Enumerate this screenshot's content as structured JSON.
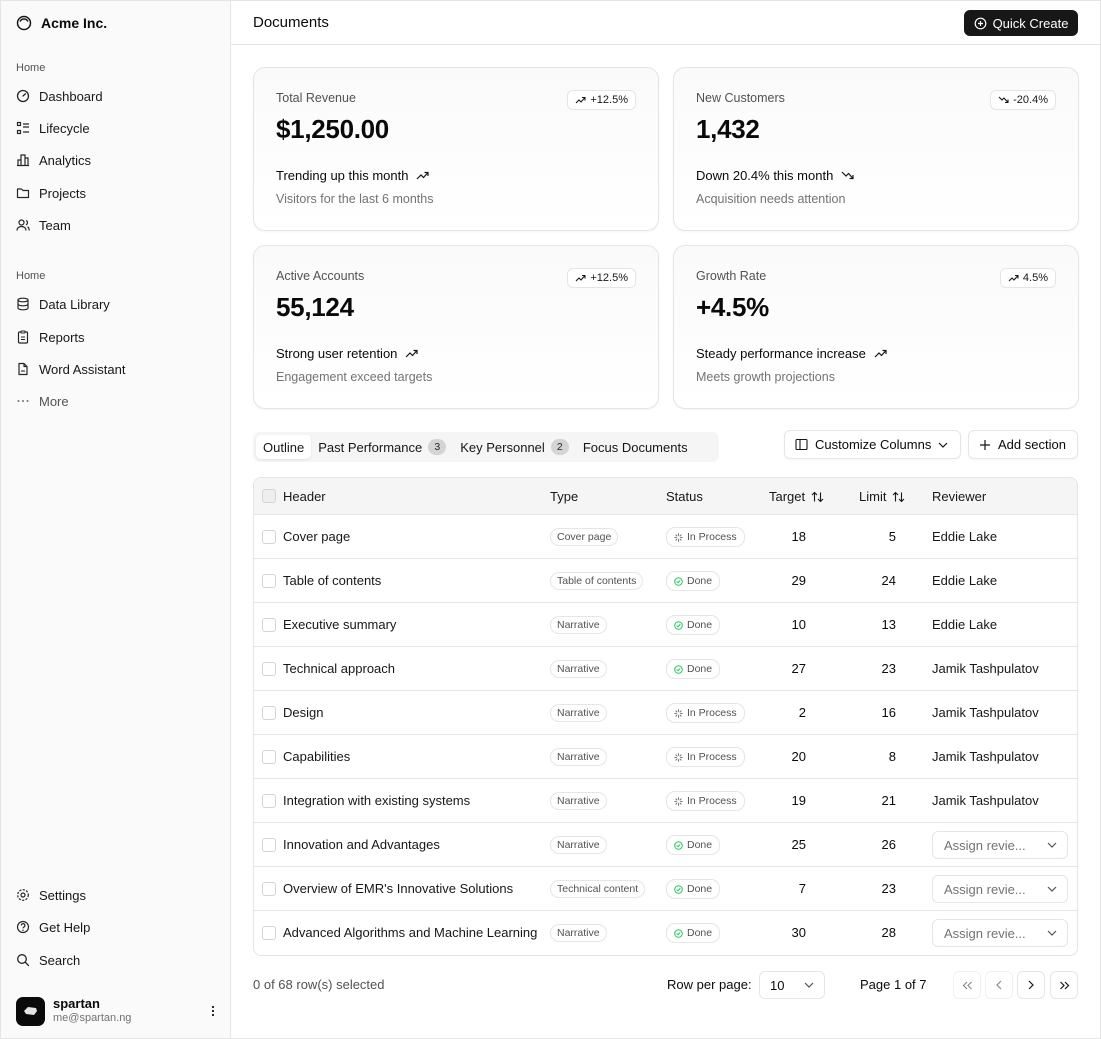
{
  "sidebar": {
    "brand": "Acme Inc.",
    "group1_label": "Home",
    "group1": [
      {
        "label": "Dashboard",
        "icon": "gauge-icon"
      },
      {
        "label": "Lifecycle",
        "icon": "list-icon"
      },
      {
        "label": "Analytics",
        "icon": "chart-icon"
      },
      {
        "label": "Projects",
        "icon": "folder-icon"
      },
      {
        "label": "Team",
        "icon": "users-icon"
      }
    ],
    "group2_label": "Home",
    "group2": [
      {
        "label": "Data Library",
        "icon": "database-icon"
      },
      {
        "label": "Reports",
        "icon": "clipboard-icon"
      },
      {
        "label": "Word Assistant",
        "icon": "file-icon"
      },
      {
        "label": "More",
        "icon": "ellipsis-icon"
      }
    ],
    "bottom": [
      {
        "label": "Settings",
        "icon": "gear-icon"
      },
      {
        "label": "Get Help",
        "icon": "help-icon"
      },
      {
        "label": "Search",
        "icon": "search-icon"
      }
    ],
    "user": {
      "name": "spartan",
      "email": "me@spartan.ng"
    }
  },
  "header": {
    "title": "Documents",
    "quick_create": "Quick Create"
  },
  "cards": [
    {
      "label": "Total Revenue",
      "value": "$1,250.00",
      "badge": "+12.5%",
      "trend": "up",
      "foot1": "Trending up this month",
      "foot2": "Visitors for the last 6 months"
    },
    {
      "label": "New Customers",
      "value": "1,432",
      "badge": "-20.4%",
      "trend": "down",
      "foot1": "Down 20.4% this month",
      "foot2": "Acquisition needs attention"
    },
    {
      "label": "Active Accounts",
      "value": "55,124",
      "badge": "+12.5%",
      "trend": "up",
      "foot1": "Strong user retention",
      "foot2": "Engagement exceed targets"
    },
    {
      "label": "Growth Rate",
      "value": "+4.5%",
      "badge": "4.5%",
      "trend": "up",
      "foot1": "Steady performance increase",
      "foot2": "Meets growth projections"
    }
  ],
  "tabs": [
    {
      "label": "Outline",
      "count": null,
      "active": true
    },
    {
      "label": "Past Performance",
      "count": "3"
    },
    {
      "label": "Key Personnel",
      "count": "2"
    },
    {
      "label": "Focus Documents",
      "count": null
    }
  ],
  "actions": {
    "customize": "Customize Columns",
    "add_section": "Add section"
  },
  "table": {
    "columns": {
      "header": "Header",
      "type": "Type",
      "status": "Status",
      "target": "Target",
      "limit": "Limit",
      "reviewer": "Reviewer"
    },
    "rows": [
      {
        "header": "Cover page",
        "type": "Cover page",
        "status": "In Process",
        "target": "18",
        "limit": "5",
        "reviewer": "Eddie Lake"
      },
      {
        "header": "Table of contents",
        "type": "Table of contents",
        "status": "Done",
        "target": "29",
        "limit": "24",
        "reviewer": "Eddie Lake"
      },
      {
        "header": "Executive summary",
        "type": "Narrative",
        "status": "Done",
        "target": "10",
        "limit": "13",
        "reviewer": "Eddie Lake"
      },
      {
        "header": "Technical approach",
        "type": "Narrative",
        "status": "Done",
        "target": "27",
        "limit": "23",
        "reviewer": "Jamik Tashpulatov"
      },
      {
        "header": "Design",
        "type": "Narrative",
        "status": "In Process",
        "target": "2",
        "limit": "16",
        "reviewer": "Jamik Tashpulatov"
      },
      {
        "header": "Capabilities",
        "type": "Narrative",
        "status": "In Process",
        "target": "20",
        "limit": "8",
        "reviewer": "Jamik Tashpulatov"
      },
      {
        "header": "Integration with existing systems",
        "type": "Narrative",
        "status": "In Process",
        "target": "19",
        "limit": "21",
        "reviewer": "Jamik Tashpulatov"
      },
      {
        "header": "Innovation and Advantages",
        "type": "Narrative",
        "status": "Done",
        "target": "25",
        "limit": "26",
        "reviewer": null,
        "reviewer_placeholder": "Assign revie..."
      },
      {
        "header": "Overview of EMR's Innovative Solutions",
        "type": "Technical content",
        "status": "Done",
        "target": "7",
        "limit": "23",
        "reviewer": null,
        "reviewer_placeholder": "Assign revie..."
      },
      {
        "header": "Advanced Algorithms and Machine Learning",
        "type": "Narrative",
        "status": "Done",
        "target": "30",
        "limit": "28",
        "reviewer": null,
        "reviewer_placeholder": "Assign revie..."
      }
    ]
  },
  "footer": {
    "selected": "0 of 68 row(s) selected",
    "rows_per_page_label": "Row per page:",
    "rows_per_page": "10",
    "page_info": "Page 1 of 7"
  },
  "colors": {
    "done": "#22c55e",
    "primary": "#171717",
    "border": "#e5e5e5"
  }
}
